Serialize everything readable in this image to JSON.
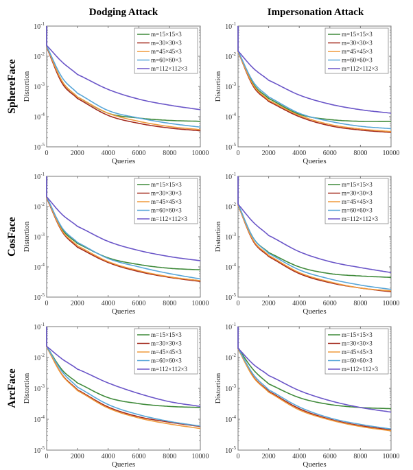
{
  "figure": {
    "column_titles": [
      "Dodging Attack",
      "Impersonation Attack"
    ],
    "row_titles": [
      "SphereFace",
      "CosFace",
      "ArcFace"
    ],
    "legend_labels": [
      "m=15×15×3",
      "m=30×30×3",
      "m=45×45×3",
      "m=60×60×3",
      "m=112×112×3"
    ],
    "series_colors": [
      "#3f8a3a",
      "#a32a1e",
      "#ef9a3c",
      "#58a6d8",
      "#6a55c8"
    ]
  },
  "chart_data": [
    {
      "type": "line",
      "row": "SphereFace",
      "column": "Dodging Attack",
      "xlabel": "Queries",
      "ylabel": "Distortion",
      "xlim": [
        0,
        10000
      ],
      "ylim": [
        1e-05,
        0.1
      ],
      "yscale": "log",
      "xticks": [
        0,
        2000,
        4000,
        6000,
        8000,
        10000
      ],
      "yticks": [
        "10^-5",
        "10^-4",
        "10^-3",
        "10^-2",
        "10^-1"
      ],
      "legend": "top-right",
      "x": [
        0,
        1000,
        2000,
        4000,
        6000,
        8000,
        10000
      ],
      "series": [
        {
          "name": "m=15×15×3",
          "values": [
            0.022,
            0.0015,
            0.00045,
            0.00013,
            9e-05,
            7.5e-05,
            7e-05
          ]
        },
        {
          "name": "m=30×30×3",
          "values": [
            0.02,
            0.0013,
            0.0004,
            0.00011,
            6e-05,
            4.2e-05,
            3.4e-05
          ]
        },
        {
          "name": "m=45×45×3",
          "values": [
            0.021,
            0.0015,
            0.00045,
            0.00013,
            7e-05,
            4.7e-05,
            3.7e-05
          ]
        },
        {
          "name": "m=60×60×3",
          "values": [
            0.022,
            0.002,
            0.0006,
            0.00016,
            9e-05,
            6e-05,
            4.5e-05
          ]
        },
        {
          "name": "m=112×112×3",
          "values": [
            0.023,
            0.0065,
            0.0025,
            0.0008,
            0.00038,
            0.00024,
            0.00017
          ]
        }
      ]
    },
    {
      "type": "line",
      "row": "SphereFace",
      "column": "Impersonation Attack",
      "xlabel": "Queries",
      "ylabel": "Distortion",
      "xlim": [
        0,
        10000
      ],
      "ylim": [
        1e-05,
        0.1
      ],
      "yscale": "log",
      "xticks": [
        0,
        2000,
        4000,
        6000,
        8000,
        10000
      ],
      "yticks": [
        "10^-5",
        "10^-4",
        "10^-3",
        "10^-2",
        "10^-1"
      ],
      "legend": "top-right",
      "x": [
        0,
        1000,
        2000,
        4000,
        6000,
        8000,
        10000
      ],
      "series": [
        {
          "name": "m=15×15×3",
          "values": [
            0.015,
            0.0012,
            0.0004,
            0.00012,
            8e-05,
            7e-05,
            7e-05
          ]
        },
        {
          "name": "m=30×30×3",
          "values": [
            0.014,
            0.001,
            0.00032,
            0.0001,
            5e-05,
            3.6e-05,
            3e-05
          ]
        },
        {
          "name": "m=45×45×3",
          "values": [
            0.014,
            0.0011,
            0.00035,
            0.00011,
            5.5e-05,
            3.9e-05,
            3.2e-05
          ]
        },
        {
          "name": "m=60×60×3",
          "values": [
            0.015,
            0.0014,
            0.00045,
            0.00013,
            7e-05,
            4.8e-05,
            4e-05
          ]
        },
        {
          "name": "m=112×112×3",
          "values": [
            0.015,
            0.004,
            0.0016,
            0.00052,
            0.00026,
            0.00017,
            0.00013
          ]
        }
      ]
    },
    {
      "type": "line",
      "row": "CosFace",
      "column": "Dodging Attack",
      "xlabel": "Queries",
      "ylabel": "Distortion",
      "xlim": [
        0,
        10000
      ],
      "ylim": [
        1e-05,
        0.1
      ],
      "yscale": "log",
      "xticks": [
        0,
        2000,
        4000,
        6000,
        8000,
        10000
      ],
      "yticks": [
        "10^-5",
        "10^-4",
        "10^-3",
        "10^-2",
        "10^-1"
      ],
      "legend": "top-right",
      "x": [
        0,
        1000,
        2000,
        4000,
        6000,
        8000,
        10000
      ],
      "series": [
        {
          "name": "m=15×15×3",
          "values": [
            0.02,
            0.0018,
            0.0006,
            0.0002,
            0.00012,
            9e-05,
            8e-05
          ]
        },
        {
          "name": "m=30×30×3",
          "values": [
            0.019,
            0.0015,
            0.00045,
            0.00014,
            7e-05,
            4.5e-05,
            3.3e-05
          ]
        },
        {
          "name": "m=45×45×3",
          "values": [
            0.02,
            0.0016,
            0.0005,
            0.00015,
            7.5e-05,
            4.7e-05,
            3.5e-05
          ]
        },
        {
          "name": "m=60×60×3",
          "values": [
            0.021,
            0.002,
            0.00065,
            0.00019,
            0.0001,
            6e-05,
            4e-05
          ]
        },
        {
          "name": "m=112×112×3",
          "values": [
            0.021,
            0.0055,
            0.0022,
            0.0007,
            0.00035,
            0.00022,
            0.00016
          ]
        }
      ]
    },
    {
      "type": "line",
      "row": "CosFace",
      "column": "Impersonation Attack",
      "xlabel": "Queries",
      "ylabel": "Distortion",
      "xlim": [
        0,
        10000
      ],
      "ylim": [
        1e-05,
        0.1
      ],
      "yscale": "log",
      "xticks": [
        0,
        2000,
        4000,
        6000,
        8000,
        10000
      ],
      "yticks": [
        "10^-5",
        "10^-4",
        "10^-3",
        "10^-2",
        "10^-1"
      ],
      "legend": "top-right",
      "x": [
        0,
        1000,
        2000,
        4000,
        6000,
        8000,
        10000
      ],
      "series": [
        {
          "name": "m=15×15×3",
          "values": [
            0.012,
            0.0009,
            0.0003,
            0.0001,
            6e-05,
            5e-05,
            4.5e-05
          ]
        },
        {
          "name": "m=30×30×3",
          "values": [
            0.011,
            0.0007,
            0.00022,
            6e-05,
            3e-05,
            2e-05,
            1.5e-05
          ]
        },
        {
          "name": "m=45×45×3",
          "values": [
            0.011,
            0.00075,
            0.00024,
            6.5e-05,
            3.2e-05,
            2e-05,
            1.6e-05
          ]
        },
        {
          "name": "m=60×60×3",
          "values": [
            0.012,
            0.0009,
            0.00028,
            8e-05,
            4e-05,
            2.5e-05,
            1.8e-05
          ]
        },
        {
          "name": "m=112×112×3",
          "values": [
            0.012,
            0.003,
            0.0011,
            0.00032,
            0.00015,
            9.5e-05,
            6.5e-05
          ]
        }
      ]
    },
    {
      "type": "line",
      "row": "ArcFace",
      "column": "Dodging Attack",
      "xlabel": "Queries",
      "ylabel": "Distortion",
      "xlim": [
        0,
        10000
      ],
      "ylim": [
        1e-05,
        0.1
      ],
      "yscale": "log",
      "xticks": [
        0,
        2000,
        4000,
        6000,
        8000,
        10000
      ],
      "yticks": [
        "10^-5",
        "10^-4",
        "10^-3",
        "10^-2",
        "10^-1"
      ],
      "legend": "top-right",
      "x": [
        0,
        1000,
        2000,
        4000,
        6000,
        8000,
        10000
      ],
      "series": [
        {
          "name": "m=15×15×3",
          "values": [
            0.023,
            0.004,
            0.0015,
            0.0005,
            0.00032,
            0.00026,
            0.00024
          ]
        },
        {
          "name": "m=30×30×3",
          "values": [
            0.022,
            0.0028,
            0.0009,
            0.00025,
            0.00012,
            8e-05,
            5.8e-05
          ]
        },
        {
          "name": "m=45×45×3",
          "values": [
            0.022,
            0.0027,
            0.00085,
            0.00023,
            0.00011,
            7e-05,
            5e-05
          ]
        },
        {
          "name": "m=60×60×3",
          "values": [
            0.023,
            0.0035,
            0.0011,
            0.0003,
            0.00014,
            8.5e-05,
            6e-05
          ]
        },
        {
          "name": "m=112×112×3",
          "values": [
            0.023,
            0.009,
            0.0042,
            0.0015,
            0.00068,
            0.00037,
            0.00026
          ]
        }
      ]
    },
    {
      "type": "line",
      "row": "ArcFace",
      "column": "Impersonation Attack",
      "xlabel": "Queries",
      "ylabel": "Distortion",
      "xlim": [
        0,
        10000
      ],
      "ylim": [
        1e-05,
        0.1
      ],
      "yscale": "log",
      "xticks": [
        0,
        2000,
        4000,
        6000,
        8000,
        10000
      ],
      "yticks": [
        "10^-5",
        "10^-4",
        "10^-3",
        "10^-2",
        "10^-1"
      ],
      "legend": "top-right",
      "x": [
        0,
        1000,
        2000,
        4000,
        6000,
        8000,
        10000
      ],
      "series": [
        {
          "name": "m=15×15×3",
          "values": [
            0.02,
            0.004,
            0.0014,
            0.0005,
            0.0003,
            0.00024,
            0.00022
          ]
        },
        {
          "name": "m=30×30×3",
          "values": [
            0.019,
            0.0024,
            0.0008,
            0.00022,
            0.0001,
            6.2e-05,
            4.5e-05
          ]
        },
        {
          "name": "m=45×45×3",
          "values": [
            0.019,
            0.0023,
            0.00075,
            0.0002,
            9.5e-05,
            5.8e-05,
            4.2e-05
          ]
        },
        {
          "name": "m=60×60×3",
          "values": [
            0.02,
            0.0028,
            0.0009,
            0.00025,
            0.00011,
            6.8e-05,
            4.8e-05
          ]
        },
        {
          "name": "m=112×112×3",
          "values": [
            0.02,
            0.006,
            0.0026,
            0.00085,
            0.0004,
            0.00024,
            0.00017
          ]
        }
      ]
    }
  ]
}
